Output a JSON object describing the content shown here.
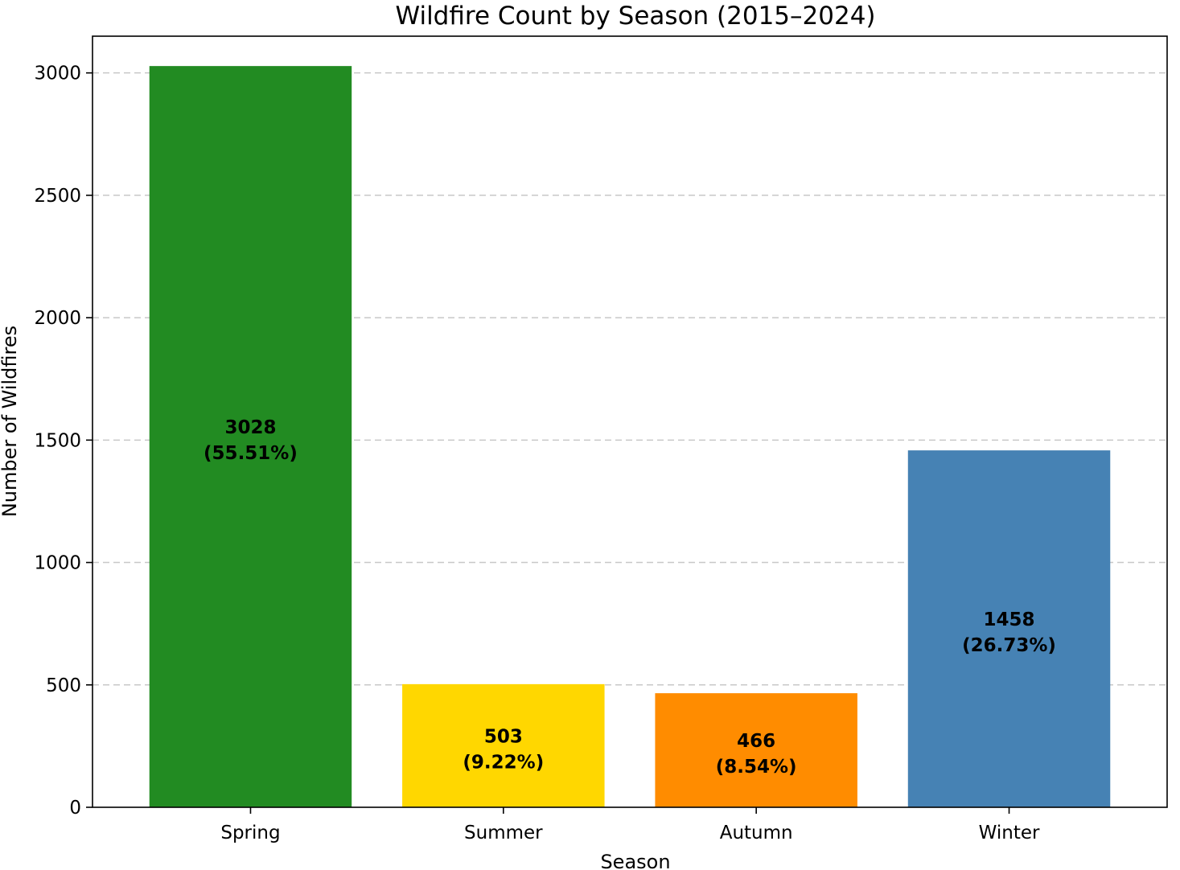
{
  "chart_data": {
    "type": "bar",
    "title": "Wildfire Count by Season (2015–2024)",
    "xlabel": "Season",
    "ylabel": "Number of Wildfires",
    "categories": [
      "Spring",
      "Summer",
      "Autumn",
      "Winter"
    ],
    "values": [
      3028,
      503,
      466,
      1458
    ],
    "percent_labels": [
      "(55.51%)",
      "(9.22%)",
      "(8.54%)",
      "(26.73%)"
    ],
    "colors": [
      "#228b22",
      "#ffd700",
      "#ff8c00",
      "#4682b4"
    ],
    "ylim": [
      0,
      3150
    ],
    "yticks": [
      0,
      500,
      1000,
      1500,
      2000,
      2500,
      3000
    ],
    "grid": "y-axis dashed",
    "legend": "none"
  }
}
